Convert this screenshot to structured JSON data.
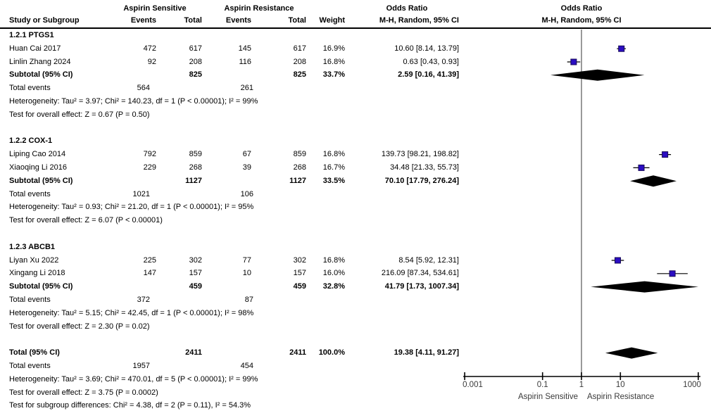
{
  "header": {
    "study_col": "Study or Subgroup",
    "group1_label": "Aspirin Sensitive",
    "group2_label": "Aspirin Resistance",
    "events_col1": "Events",
    "total_col1": "Total",
    "events_col2": "Events",
    "total_col2": "Total",
    "weight_col": "Weight",
    "or_col_line1": "Odds Ratio",
    "or_col_line2": "M-H, Random, 95% CI",
    "plot_col_line1": "Odds Ratio",
    "plot_col_line2": "M-H, Random, 95% CI"
  },
  "rows": [
    {
      "type": "group",
      "label": "1.2.1 PTGS1"
    },
    {
      "type": "study",
      "study": "Huan Cai 2017",
      "e1": "472",
      "t1": "617",
      "e2": "145",
      "t2": "617",
      "weight": "16.9%",
      "or_text": "10.60 [8.14, 13.79]"
    },
    {
      "type": "study",
      "study": "Linlin Zhang 2024",
      "e1": "92",
      "t1": "208",
      "e2": "116",
      "t2": "208",
      "weight": "16.8%",
      "or_text": "0.63 [0.43, 0.93]"
    },
    {
      "type": "subtotal",
      "study": "Subtotal (95% CI)",
      "t1": "825",
      "t2": "825",
      "weight": "33.7%",
      "or_text": "2.59 [0.16, 41.39]"
    },
    {
      "type": "events",
      "label": "Total events",
      "v1": "564",
      "v2": "261"
    },
    {
      "type": "note",
      "text": "Heterogeneity: Tau² = 3.97; Chi² = 140.23, df = 1 (P < 0.00001); I² = 99%"
    },
    {
      "type": "note",
      "text": "Test for overall effect: Z = 0.67 (P = 0.50)"
    },
    {
      "type": "spacer"
    },
    {
      "type": "group",
      "label": "1.2.2 COX-1"
    },
    {
      "type": "study",
      "study": "Liping Cao 2014",
      "e1": "792",
      "t1": "859",
      "e2": "67",
      "t2": "859",
      "weight": "16.8%",
      "or_text": "139.73 [98.21, 198.82]"
    },
    {
      "type": "study",
      "study": "Xiaoqing Li 2016",
      "e1": "229",
      "t1": "268",
      "e2": "39",
      "t2": "268",
      "weight": "16.7%",
      "or_text": "34.48 [21.33, 55.73]"
    },
    {
      "type": "subtotal",
      "study": "Subtotal (95% CI)",
      "t1": "1127",
      "t2": "1127",
      "weight": "33.5%",
      "or_text": "70.10 [17.79, 276.24]"
    },
    {
      "type": "events",
      "label": "Total events",
      "v1": "1021",
      "v2": "106"
    },
    {
      "type": "note",
      "text": "Heterogeneity: Tau² = 0.93; Chi² = 21.20, df = 1 (P < 0.00001); I² = 95%"
    },
    {
      "type": "note",
      "text": "Test for overall effect: Z = 6.07 (P < 0.00001)"
    },
    {
      "type": "spacer"
    },
    {
      "type": "group",
      "label": "1.2.3 ABCB1"
    },
    {
      "type": "study",
      "study": "Liyan Xu 2022",
      "e1": "225",
      "t1": "302",
      "e2": "77",
      "t2": "302",
      "weight": "16.8%",
      "or_text": "8.54 [5.92, 12.31]"
    },
    {
      "type": "study",
      "study": "Xingang Li 2018",
      "e1": "147",
      "t1": "157",
      "e2": "10",
      "t2": "157",
      "weight": "16.0%",
      "or_text": "216.09 [87.34, 534.61]"
    },
    {
      "type": "subtotal",
      "study": "Subtotal (95% CI)",
      "t1": "459",
      "t2": "459",
      "weight": "32.8%",
      "or_text": "41.79 [1.73, 1007.34]"
    },
    {
      "type": "events",
      "label": "Total events",
      "v1": "372",
      "v2": "87"
    },
    {
      "type": "note",
      "text": "Heterogeneity: Tau² = 5.15; Chi² = 42.45, df = 1 (P < 0.00001); I² = 98%"
    },
    {
      "type": "note",
      "text": "Test for overall effect: Z = 2.30 (P = 0.02)"
    },
    {
      "type": "spacer"
    },
    {
      "type": "total",
      "study": "Total (95% CI)",
      "t1": "2411",
      "t2": "2411",
      "weight": "100.0%",
      "or_text": "19.38 [4.11, 91.27]"
    },
    {
      "type": "events",
      "label": "Total events",
      "v1": "1957",
      "v2": "454"
    },
    {
      "type": "note",
      "text": "Heterogeneity: Tau² = 3.69; Chi² = 470.01, df = 5 (P < 0.00001); I² = 99%"
    },
    {
      "type": "note",
      "text": "Test for overall effect: Z = 3.75 (P = 0.0002)"
    },
    {
      "type": "note",
      "text": "Test for subgroup differences: Chi² = 4.38, df = 2 (P = 0.11), I² = 54.3%"
    }
  ],
  "chart_data": {
    "type": "forest",
    "effect_measure": "Odds Ratio, M-H, Random, 95% CI",
    "x_scale": "log10",
    "x_range": [
      0.001,
      1000
    ],
    "null_line_at": 1,
    "x_ticks": [
      0.001,
      0.1,
      1,
      10,
      1000
    ],
    "x_tick_labels": [
      "0.001",
      "0.1",
      "1",
      "10",
      "1000"
    ],
    "x_axis_left_label": "Aspirin Sensitive",
    "x_axis_right_label": "Aspirin Resistance",
    "groups": [
      {
        "name": "1.2.1 PTGS1",
        "subtotal_or": 2.59,
        "subtotal_ci": [
          0.16,
          41.39
        ],
        "i2": "99%"
      },
      {
        "name": "1.2.2 COX-1",
        "subtotal_or": 70.1,
        "subtotal_ci": [
          17.79,
          276.24
        ],
        "i2": "95%"
      },
      {
        "name": "1.2.3 ABCB1",
        "subtotal_or": 41.79,
        "subtotal_ci": [
          1.73,
          1007.34
        ],
        "i2": "98%"
      }
    ],
    "total": {
      "or": 19.38,
      "ci": [
        4.11,
        91.27
      ],
      "weight_pct": 100.0
    },
    "markers": [
      {
        "kind": "square",
        "row": 1,
        "label": "Huan Cai 2017",
        "or": 10.6,
        "lo": 8.14,
        "hi": 13.79,
        "weight_pct": 16.9
      },
      {
        "kind": "square",
        "row": 2,
        "label": "Linlin Zhang 2024",
        "or": 0.63,
        "lo": 0.43,
        "hi": 0.93,
        "weight_pct": 16.8
      },
      {
        "kind": "diamond",
        "row": 3,
        "label": "Subtotal 1.2.1 PTGS1",
        "or": 2.59,
        "lo": 0.16,
        "hi": 41.39,
        "weight_pct": 33.7
      },
      {
        "kind": "square",
        "row": 9,
        "label": "Liping Cao 2014",
        "or": 139.73,
        "lo": 98.21,
        "hi": 198.82,
        "weight_pct": 16.8
      },
      {
        "kind": "square",
        "row": 10,
        "label": "Xiaoqing Li 2016",
        "or": 34.48,
        "lo": 21.33,
        "hi": 55.73,
        "weight_pct": 16.7
      },
      {
        "kind": "diamond",
        "row": 11,
        "label": "Subtotal 1.2.2 COX-1",
        "or": 70.1,
        "lo": 17.79,
        "hi": 276.24,
        "weight_pct": 33.5
      },
      {
        "kind": "square",
        "row": 17,
        "label": "Liyan Xu 2022",
        "or": 8.54,
        "lo": 5.92,
        "hi": 12.31,
        "weight_pct": 16.8
      },
      {
        "kind": "square",
        "row": 18,
        "label": "Xingang Li 2018",
        "or": 216.09,
        "lo": 87.34,
        "hi": 534.61,
        "weight_pct": 16.0
      },
      {
        "kind": "diamond",
        "row": 19,
        "label": "Subtotal 1.2.3 ABCB1",
        "or": 41.79,
        "lo": 1.73,
        "hi": 1007.34,
        "weight_pct": 32.8
      },
      {
        "kind": "diamond",
        "row": 24,
        "label": "Total (95% CI)",
        "or": 19.38,
        "lo": 4.11,
        "hi": 91.27,
        "weight_pct": 100.0
      }
    ]
  },
  "colors": {
    "marker_fill": "#2B0DC2",
    "marker_stroke": "#140655",
    "diamond_fill": "#000000",
    "ci_line": "#000000",
    "null_line": "#565656",
    "axis_line": "#000000",
    "axis_text": "#3a3a3a",
    "text": "#000000"
  }
}
